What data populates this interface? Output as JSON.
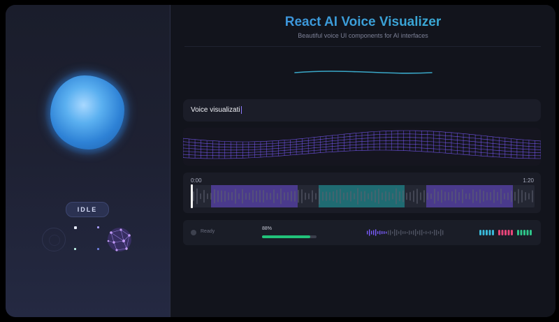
{
  "header": {
    "title": "React AI Voice Visualizer",
    "subtitle": "Beautiful voice UI components for AI interfaces"
  },
  "left_panel": {
    "orb": {
      "colors": [
        "#a8d8ff",
        "#2e82d6"
      ]
    },
    "state_badge": "IDLE"
  },
  "input": {
    "value": "Voice visualizati",
    "caret_color": "#8f7bff"
  },
  "player": {
    "current_time": "0:00",
    "duration": "1:20",
    "segment_colors": [
      "#4a3a8c",
      "#1f6b72",
      "#4a3a8c"
    ]
  },
  "status_bar": {
    "status": "Ready",
    "progress_label": "88%",
    "progress": 0.88,
    "progress_color": "#22c27a",
    "pill_colors": [
      "#3ab8d8",
      "#e8457a",
      "#2fc58a"
    ]
  },
  "colors": {
    "accent_purple": "#7b5cff",
    "accent_teal": "#3aa8c8"
  }
}
